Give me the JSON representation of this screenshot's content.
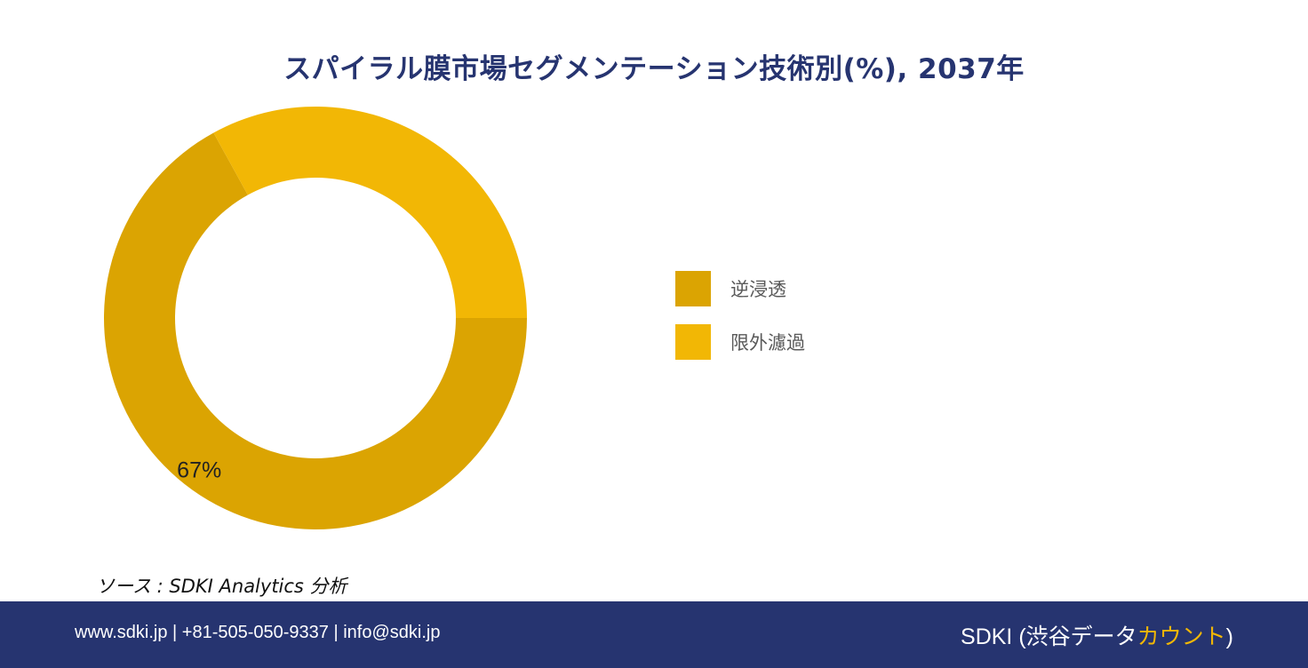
{
  "title": "スパイラル膜市場セグメンテーション技術別(%), 2037年",
  "chart_data": {
    "type": "pie",
    "categories": [
      "逆浸透",
      "限外濾過"
    ],
    "values": [
      67,
      33
    ],
    "data_labels": [
      "67%",
      ""
    ],
    "colors": [
      "#dba402",
      "#f2b705"
    ],
    "donut": true,
    "legend_position": "right"
  },
  "source": "ソース : SDKI Analytics 分析",
  "footer": {
    "contact": "www.sdki.jp | +81-505-050-9337 | info@sdki.jp",
    "brand_prefix": "SDKI (渋谷データ",
    "brand_accent": "カウント",
    "brand_suffix": ")"
  }
}
